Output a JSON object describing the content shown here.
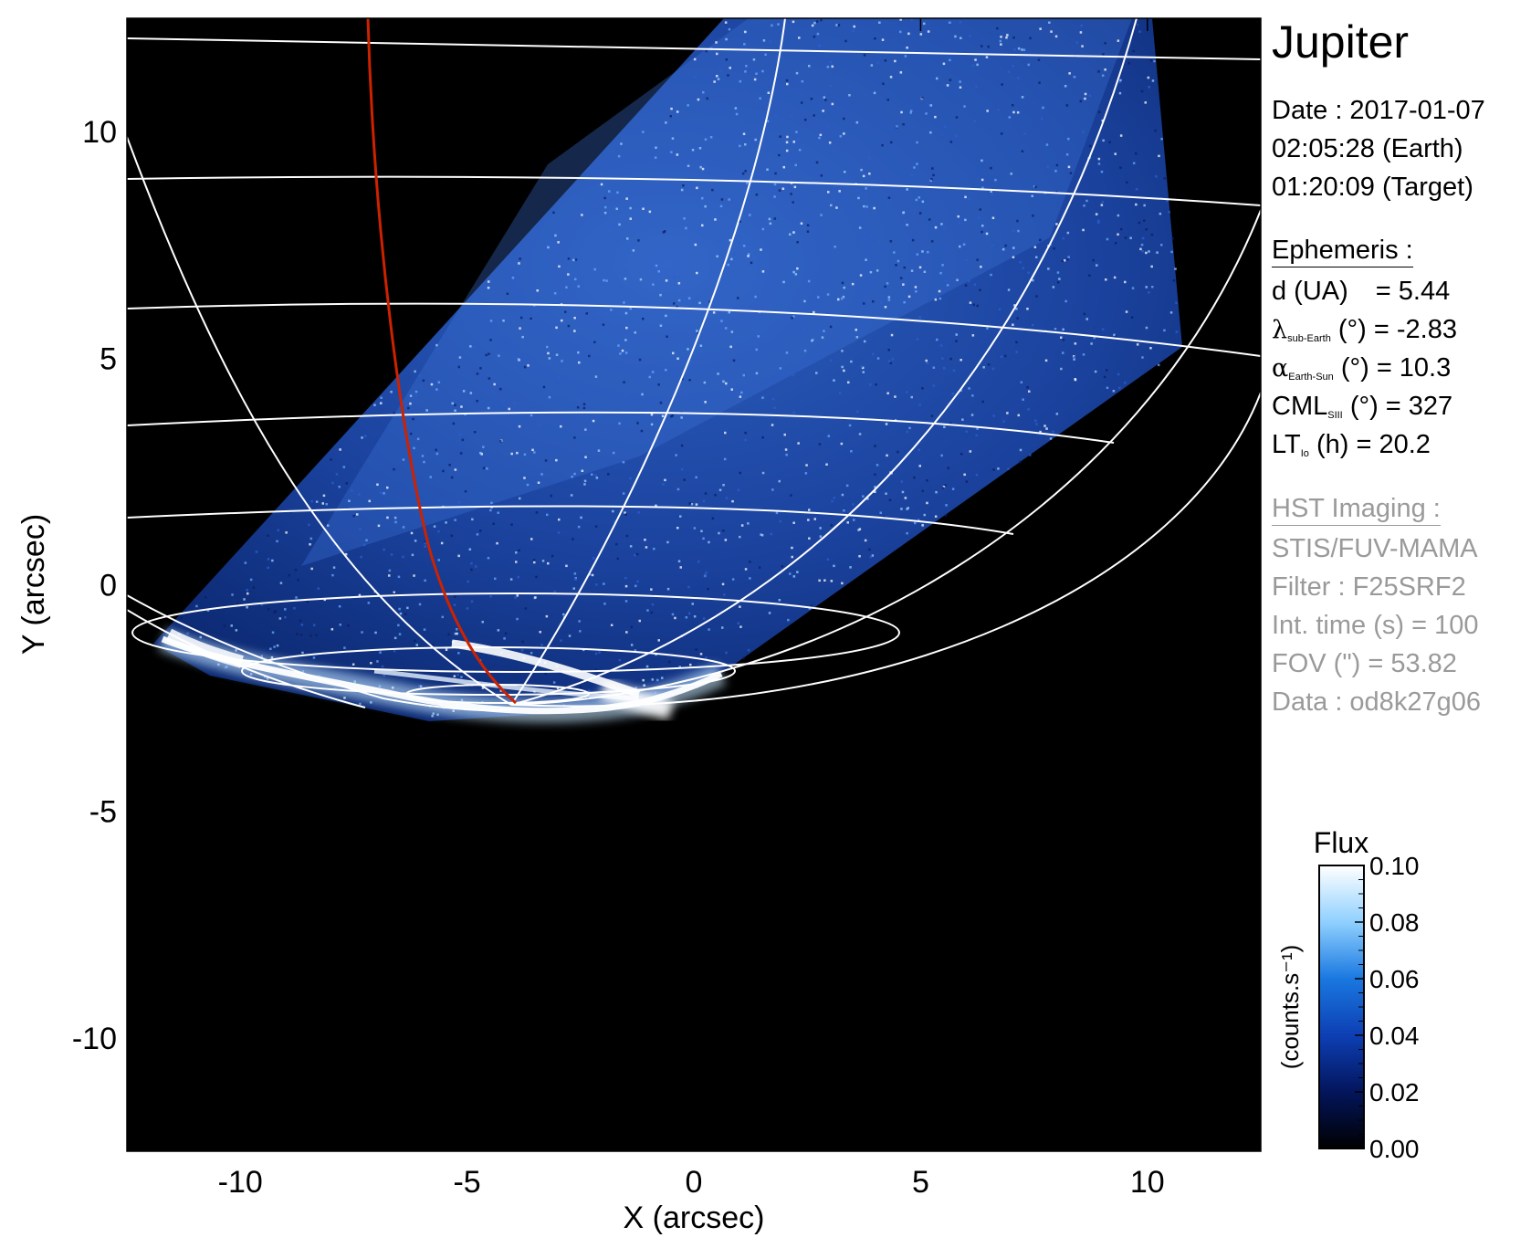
{
  "chart_data": {
    "type": "heatmap",
    "title": "",
    "xlabel": "X (arcsec)",
    "ylabel": "Y (arcsec)",
    "xlim": [
      -12.5,
      12.5
    ],
    "ylim": [
      -12.5,
      12.5
    ],
    "xticks": [
      -10,
      -5,
      0,
      5,
      10
    ],
    "yticks": [
      -10,
      -5,
      0,
      5,
      10
    ],
    "xtick_labels": [
      "-10",
      "-5",
      "0",
      "5",
      "10"
    ],
    "ytick_labels": [
      "-10",
      "-5",
      "0",
      "5",
      "10"
    ],
    "colorbar": {
      "title": "Flux",
      "label": "(counts.s⁻¹)",
      "range": [
        0.0,
        0.1
      ],
      "ticks": [
        "0.10",
        "0.08",
        "0.06",
        "0.04",
        "0.02",
        "0.00"
      ],
      "colors": [
        "#000000",
        "#03155c",
        "#0d3fb4",
        "#1a78e0",
        "#8fd0ff",
        "#ffffff"
      ]
    },
    "overlays": [
      "planetographic-latitude-longitude-grid",
      "red-footprint-line"
    ],
    "grid_color": "#ffffff",
    "footprint_color": "#cc2200"
  },
  "info": {
    "target": "Jupiter",
    "date_line": "Date : 2017-01-07",
    "earth_time": "02:05:28 (Earth)",
    "target_time": "01:20:09 (Target)",
    "ephemeris_header": "Ephemeris :",
    "distance": {
      "label": "d (UA)",
      "value": "= 5.44"
    },
    "sub_earth_lat": {
      "symbol": "λ",
      "sub": "sub-Earth",
      "unit": "(°)",
      "value": "= -2.83"
    },
    "phase_angle": {
      "symbol": "α",
      "sub": "Earth-Sun",
      "unit": "(°)",
      "value": "= 10.3"
    },
    "cml": {
      "symbol": "CML",
      "sub": "SIII",
      "unit": "(°)",
      "value": "= 327"
    },
    "local_time": {
      "symbol": "LT",
      "sub": "Io",
      "unit": "(h)",
      "value": "= 20.2"
    },
    "hst_header": "HST Imaging :",
    "instrument": "STIS/FUV-MAMA",
    "filter": "Filter : F25SRF2",
    "int_time": "Int. time (s) = 100",
    "fov": "FOV (\") = 53.82",
    "data_id": "Data : od8k27g06"
  }
}
